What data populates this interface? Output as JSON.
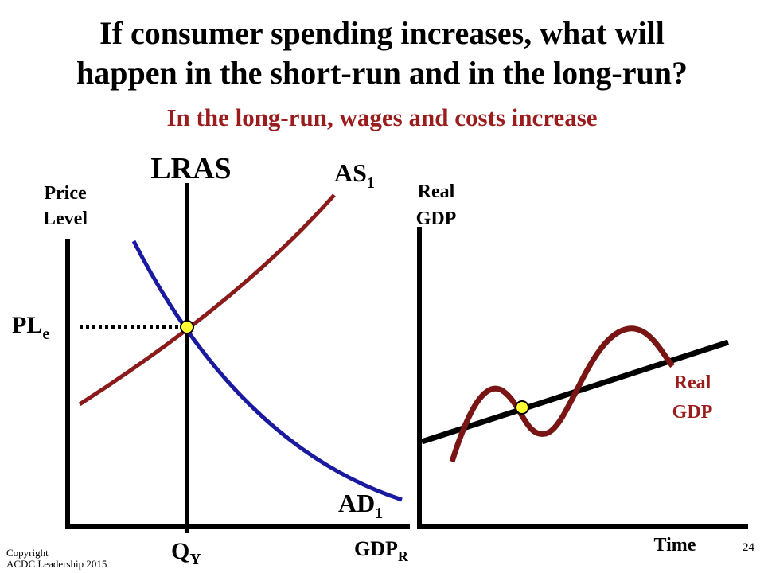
{
  "header": {
    "title": [
      "If consumer spending increases, what will",
      "happen in the short-run and in the long-run?"
    ],
    "subtitle": "In the long-run, wages and costs increase"
  },
  "left_graph": {
    "y_axis_label": [
      "Price",
      "Level"
    ],
    "lras": "LRAS",
    "as": {
      "main": "AS",
      "sub": "1"
    },
    "ad": {
      "main": "AD",
      "sub": "1"
    },
    "price_level": {
      "main": "PL",
      "sub": "e"
    },
    "quantity": {
      "main": "Q",
      "sub": "Y"
    },
    "x_axis_label": {
      "main": "GDP",
      "sub": "R"
    }
  },
  "right_graph": {
    "y_axis_label": [
      "Real",
      "GDP"
    ],
    "x_axis_label": "Time",
    "curve_label": [
      "Real",
      "GDP"
    ]
  },
  "footer": {
    "copyright": [
      "Copyright",
      "ACDC Leadership 2015"
    ],
    "page_number": "24"
  }
}
